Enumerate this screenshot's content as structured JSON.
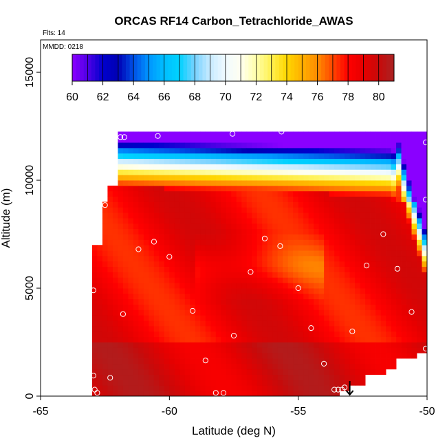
{
  "chart_data": {
    "type": "heatmap",
    "title": "ORCAS RF14 Carbon_Tetrachloride_AWAS",
    "annotations": {
      "flights": "Flts: 14",
      "date": "MMDD: 0218"
    },
    "xlabel": "Latitude (deg N)",
    "ylabel": "Altitude (m)",
    "xlim": [
      -65,
      -50
    ],
    "ylim": [
      0,
      16500
    ],
    "x_ticks": [
      -65,
      -60,
      -55,
      -50
    ],
    "y_ticks": [
      0,
      5000,
      10000,
      15000
    ],
    "colorbar": {
      "range": [
        60,
        81
      ],
      "ticks": [
        60,
        62,
        64,
        66,
        68,
        70,
        72,
        74,
        76,
        78,
        80
      ],
      "placement": "top-inside"
    },
    "colors": {
      "low": "#8800ff",
      "mid_blue": "#00b3ff",
      "mid": "#ffffff",
      "high": "#ff0000",
      "max": "#a52a2a"
    },
    "samples": [
      {
        "lat": -62.95,
        "alt": 4900
      },
      {
        "lat": -62.95,
        "alt": 950
      },
      {
        "lat": -62.9,
        "alt": 300
      },
      {
        "lat": -62.8,
        "alt": 150
      },
      {
        "lat": -62.3,
        "alt": 850
      },
      {
        "lat": -61.8,
        "alt": 3800
      },
      {
        "lat": -62.5,
        "alt": 8850
      },
      {
        "lat": -61.2,
        "alt": 6800
      },
      {
        "lat": -60.6,
        "alt": 7150
      },
      {
        "lat": -60.0,
        "alt": 6450
      },
      {
        "lat": -61.9,
        "alt": 12000
      },
      {
        "lat": -61.75,
        "alt": 12000
      },
      {
        "lat": -60.45,
        "alt": 12050
      },
      {
        "lat": -59.1,
        "alt": 3950
      },
      {
        "lat": -58.6,
        "alt": 1650
      },
      {
        "lat": -58.2,
        "alt": 150
      },
      {
        "lat": -57.9,
        "alt": 150
      },
      {
        "lat": -57.55,
        "alt": 12150
      },
      {
        "lat": -57.5,
        "alt": 2800
      },
      {
        "lat": -56.85,
        "alt": 5750
      },
      {
        "lat": -56.3,
        "alt": 7300
      },
      {
        "lat": -55.7,
        "alt": 6950
      },
      {
        "lat": -55.65,
        "alt": 12250
      },
      {
        "lat": -55.0,
        "alt": 5000
      },
      {
        "lat": -54.5,
        "alt": 3150
      },
      {
        "lat": -54.0,
        "alt": 1500
      },
      {
        "lat": -53.6,
        "alt": 300
      },
      {
        "lat": -53.45,
        "alt": 300
      },
      {
        "lat": -53.3,
        "alt": 300
      },
      {
        "lat": -53.2,
        "alt": 400
      },
      {
        "lat": -52.9,
        "alt": 3000
      },
      {
        "lat": -52.35,
        "alt": 6050
      },
      {
        "lat": -51.7,
        "alt": 7500
      },
      {
        "lat": -51.15,
        "alt": 5900
      },
      {
        "lat": -50.6,
        "alt": 3900
      },
      {
        "lat": -50.05,
        "alt": 12400
      },
      {
        "lat": -50.05,
        "alt": 11750
      },
      {
        "lat": -50.05,
        "alt": 9100
      },
      {
        "lat": -50.05,
        "alt": 2200
      }
    ],
    "arrow_marker": {
      "lat": -53.0,
      "alt": 0
    }
  }
}
